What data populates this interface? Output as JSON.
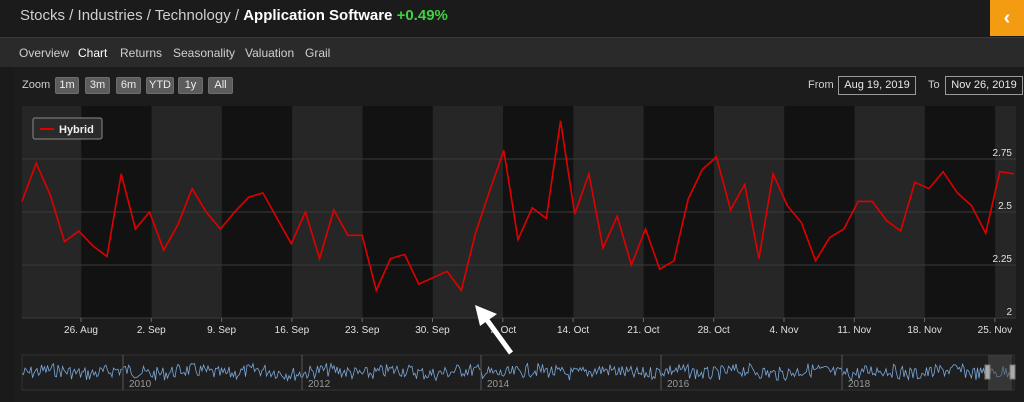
{
  "breadcrumb": {
    "parts": [
      "Stocks",
      "Industries",
      "Technology"
    ],
    "sep": " / ",
    "current": "Application Software",
    "change": "+0.49%"
  },
  "collapse_icon": "‹",
  "tabs": [
    {
      "label": "Overview",
      "active": false
    },
    {
      "label": "Chart",
      "active": true
    },
    {
      "label": "Returns",
      "active": false
    },
    {
      "label": "Seasonality",
      "active": false
    },
    {
      "label": "Valuation",
      "active": false
    },
    {
      "label": "Grail",
      "active": false
    }
  ],
  "zoom": {
    "label": "Zoom",
    "buttons": [
      "1m",
      "3m",
      "6m",
      "YTD",
      "1y",
      "All"
    ]
  },
  "range": {
    "from_label": "From",
    "from_value": "Aug 19, 2019",
    "to_label": "To",
    "to_value": "Nov 26, 2019"
  },
  "chart_data": {
    "type": "line",
    "series": [
      {
        "name": "Hybrid",
        "color": "#e00000",
        "values": [
          2.55,
          2.73,
          2.58,
          2.36,
          2.41,
          2.34,
          2.29,
          2.68,
          2.42,
          2.5,
          2.32,
          2.44,
          2.61,
          2.5,
          2.42,
          2.5,
          2.57,
          2.59,
          2.47,
          2.35,
          2.5,
          2.28,
          2.51,
          2.39,
          2.39,
          2.13,
          2.28,
          2.3,
          2.16,
          2.19,
          2.22,
          2.13,
          2.4,
          2.6,
          2.79,
          2.37,
          2.52,
          2.47,
          2.93,
          2.49,
          2.68,
          2.33,
          2.48,
          2.25,
          2.42,
          2.23,
          2.27,
          2.56,
          2.7,
          2.76,
          2.51,
          2.63,
          2.28,
          2.68,
          2.53,
          2.45,
          2.27,
          2.38,
          2.42,
          2.55,
          2.55,
          2.46,
          2.41,
          2.64,
          2.61,
          2.69,
          2.59,
          2.53,
          2.4,
          2.69,
          2.68
        ]
      }
    ],
    "x_ticks": [
      "26. Aug",
      "2. Sep",
      "9. Sep",
      "16. Sep",
      "23. Sep",
      "30. Sep",
      "7. Oct",
      "14. Oct",
      "21. Oct",
      "28. Oct",
      "4. Nov",
      "11. Nov",
      "18. Nov",
      "25. Nov"
    ],
    "y_ticks": [
      "2",
      "2.25",
      "2.5",
      "2.75"
    ],
    "ylim": [
      2,
      3
    ],
    "legend": "top-left"
  },
  "navigator": {
    "labels": [
      "2010",
      "2012",
      "2014",
      "2016",
      "2018"
    ]
  },
  "annotation": {
    "icon": "arrow-icon"
  }
}
